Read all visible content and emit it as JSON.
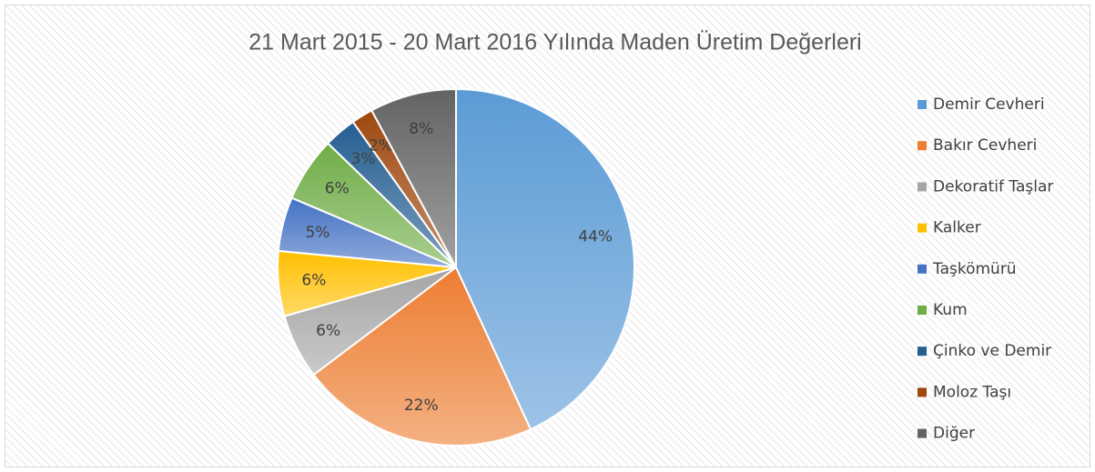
{
  "chart_data": {
    "type": "pie",
    "title": "21 Mart 2015 - 20 Mart 2016 Yılında Maden Üretim Değerleri",
    "categories": [
      "Demir Cevheri",
      "Bakır Cevheri",
      "Dekoratif Taşlar",
      "Kalker",
      "Taşkömürü",
      "Kum",
      "Çinko ve Demir",
      "Moloz Taşı",
      "Diğer"
    ],
    "values": [
      44,
      22,
      6,
      6,
      5,
      6,
      3,
      2,
      8
    ],
    "value_labels": [
      "44%",
      "22%",
      "6%",
      "6%",
      "5%",
      "6%",
      "3%",
      "2%",
      "8%"
    ],
    "colors": [
      "#5b9bd5",
      "#ed7d31",
      "#a5a5a5",
      "#ffc000",
      "#4472c4",
      "#70ad47",
      "#255e91",
      "#9e480e",
      "#636363"
    ],
    "legend": "right"
  }
}
